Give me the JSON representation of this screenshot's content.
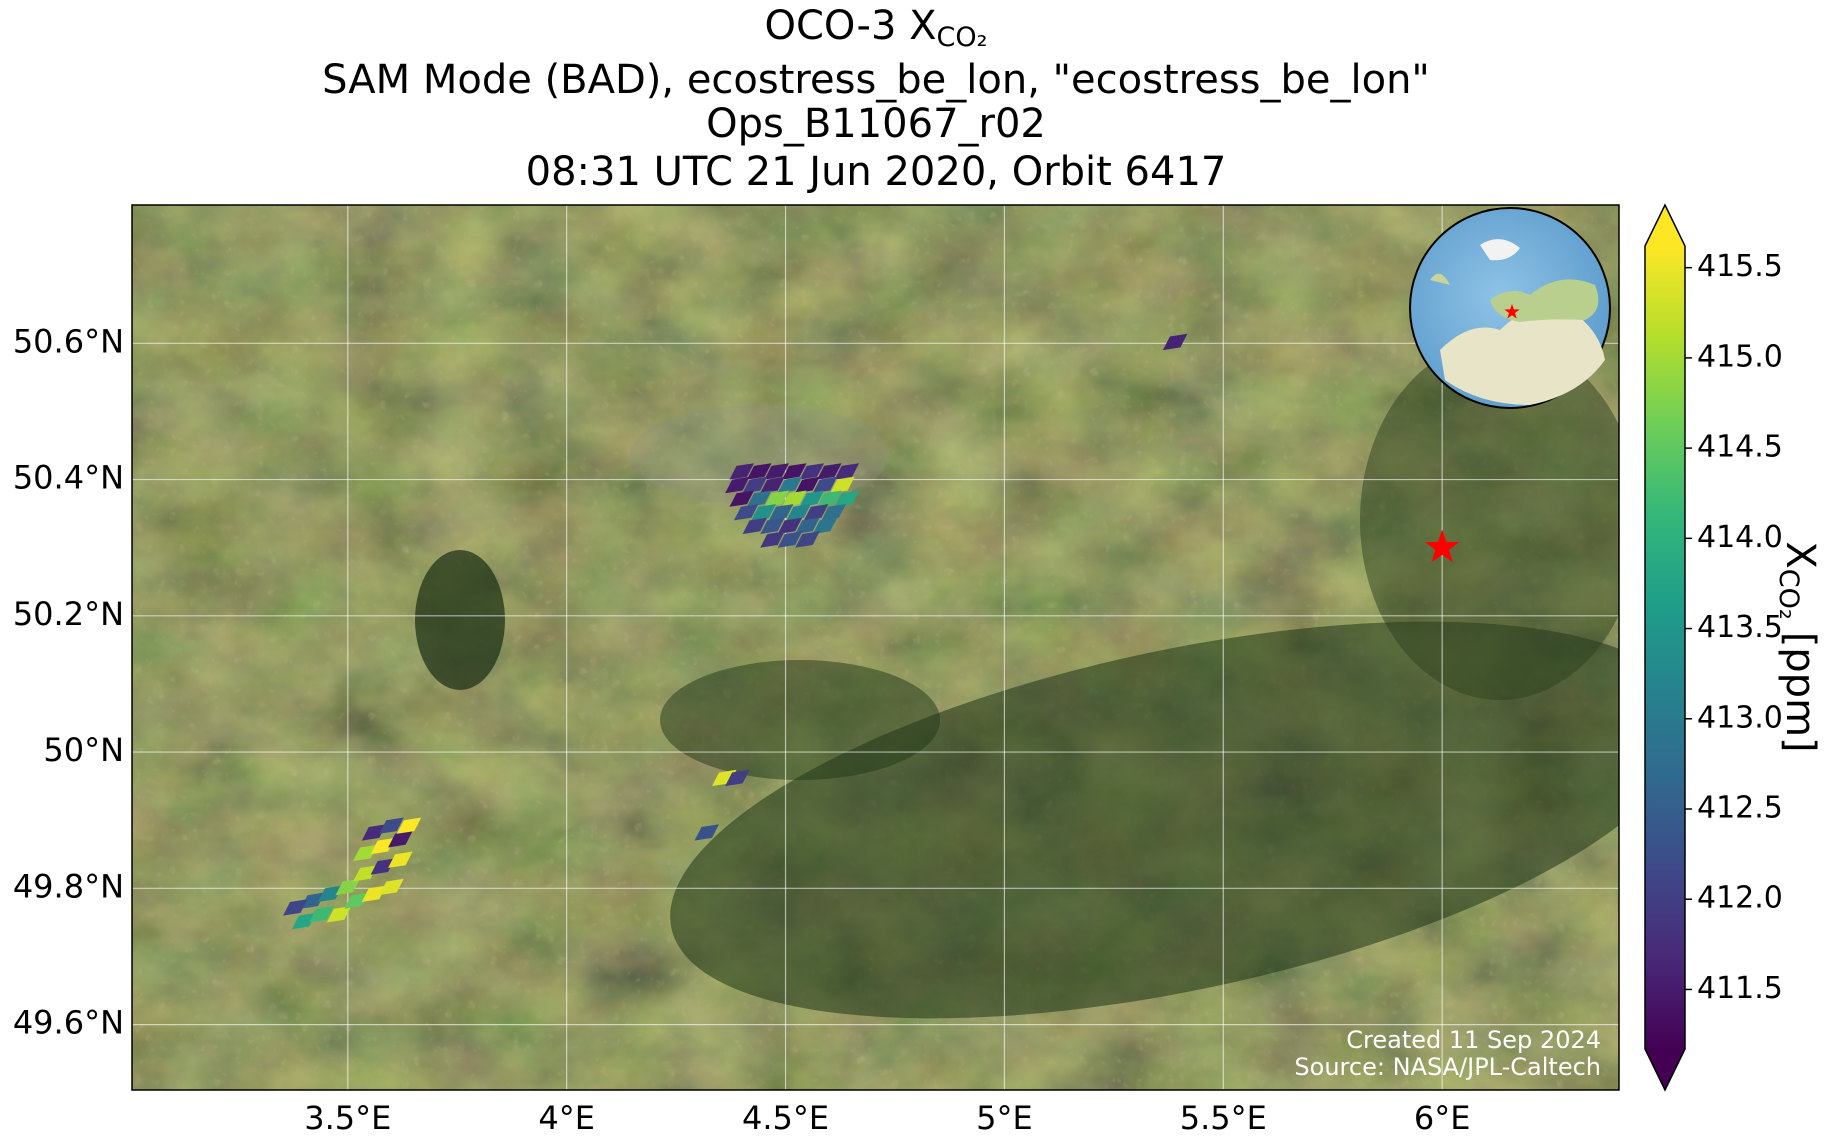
{
  "chart_data": {
    "type": "map",
    "title": {
      "main": "OCO-3 X",
      "sub": "CO₂",
      "lines": [
        "SAM Mode (BAD), ecostress_be_lon, \"ecostress_be_lon\"",
        "Ops_B11067_r02",
        "08:31 UTC 21 Jun 2020, Orbit 6417"
      ]
    },
    "xlim": [
      3.007,
      6.404
    ],
    "ylim": [
      49.504,
      50.803
    ],
    "xticks": [
      {
        "value": 3.5,
        "label": "3.5°E"
      },
      {
        "value": 4,
        "label": "4°E"
      },
      {
        "value": 4.5,
        "label": "4.5°E"
      },
      {
        "value": 5,
        "label": "5°E"
      },
      {
        "value": 5.5,
        "label": "5.5°E"
      },
      {
        "value": 6,
        "label": "6°E"
      }
    ],
    "yticks": [
      {
        "value": 49.6,
        "label": "49.6°N"
      },
      {
        "value": 49.8,
        "label": "49.8°N"
      },
      {
        "value": 50,
        "label": "50°N"
      },
      {
        "value": 50.2,
        "label": "50.2°N"
      },
      {
        "value": 50.4,
        "label": "50.4°N"
      },
      {
        "value": 50.6,
        "label": "50.6°N"
      }
    ],
    "grid": true,
    "target": {
      "lon": 6.0,
      "lat": 50.3,
      "color": "#ff0000"
    },
    "soundings": {
      "lon": [
        4.4,
        4.44,
        4.48,
        4.52,
        4.56,
        4.6,
        4.64,
        4.39,
        4.43,
        4.47,
        4.51,
        4.55,
        4.59,
        4.63,
        4.4,
        4.44,
        4.48,
        4.52,
        4.56,
        4.6,
        4.64,
        4.41,
        4.45,
        4.49,
        4.53,
        4.57,
        4.61,
        4.43,
        4.47,
        4.51,
        4.55,
        4.59,
        4.47,
        4.51,
        4.55,
        3.4,
        3.44,
        3.48,
        3.52,
        3.56,
        3.6,
        3.42,
        3.46,
        3.5,
        3.54,
        3.58,
        3.62,
        3.54,
        3.58,
        3.62,
        3.56,
        3.6,
        3.64,
        3.38,
        4.36,
        4.39,
        4.32,
        5.39
      ],
      "lat": [
        50.41,
        50.41,
        50.41,
        50.41,
        50.41,
        50.41,
        50.41,
        50.39,
        50.39,
        50.39,
        50.39,
        50.39,
        50.39,
        50.39,
        50.37,
        50.37,
        50.37,
        50.37,
        50.37,
        50.37,
        50.37,
        50.35,
        50.35,
        50.35,
        50.35,
        50.35,
        50.35,
        50.33,
        50.33,
        50.33,
        50.33,
        50.33,
        50.31,
        50.31,
        50.31,
        49.75,
        49.76,
        49.76,
        49.78,
        49.79,
        49.8,
        49.78,
        49.79,
        49.8,
        49.82,
        49.83,
        49.84,
        49.85,
        49.86,
        49.87,
        49.88,
        49.89,
        49.89,
        49.77,
        49.96,
        49.96,
        49.88,
        50.6
      ],
      "values": [
        411.6,
        411.4,
        411.5,
        411.4,
        411.8,
        411.5,
        411.7,
        411.5,
        412.0,
        411.6,
        413.0,
        411.4,
        412.2,
        415.3,
        411.4,
        412.8,
        414.8,
        415.0,
        413.5,
        414.2,
        413.8,
        412.2,
        413.4,
        412.6,
        413.2,
        412.0,
        412.8,
        412.0,
        412.4,
        411.8,
        412.6,
        412.9,
        411.9,
        412.3,
        412.1,
        413.8,
        414.2,
        415.3,
        414.5,
        415.5,
        415.4,
        412.6,
        413.2,
        414.8,
        415.2,
        411.8,
        415.5,
        415.0,
        415.6,
        411.5,
        411.7,
        412.2,
        415.6,
        412.1,
        415.4,
        412.0,
        412.3,
        411.6
      ]
    },
    "colorbar": {
      "label": "X",
      "label_sub": "CO₂",
      "label_unit": "[ppm]",
      "clim": [
        411.17,
        415.62
      ],
      "ticks": [
        411.5,
        {
          "value": 412,
          "label": "412.0"
        },
        412.5,
        {
          "value": 413,
          "label": "413.0"
        },
        413.5,
        {
          "value": 414,
          "label": "414.0"
        },
        414.5,
        {
          "value": 415,
          "label": "415.0"
        },
        415.5
      ],
      "colormap": [
        "#440154",
        "#482878",
        "#3e4989",
        "#31688e",
        "#26828e",
        "#1f9e89",
        "#35b779",
        "#6ece58",
        "#b5de2b",
        "#fde725"
      ]
    },
    "credits": [
      "Created 11 Sep 2024",
      "Source: NASA/JPL-Caltech"
    ]
  }
}
